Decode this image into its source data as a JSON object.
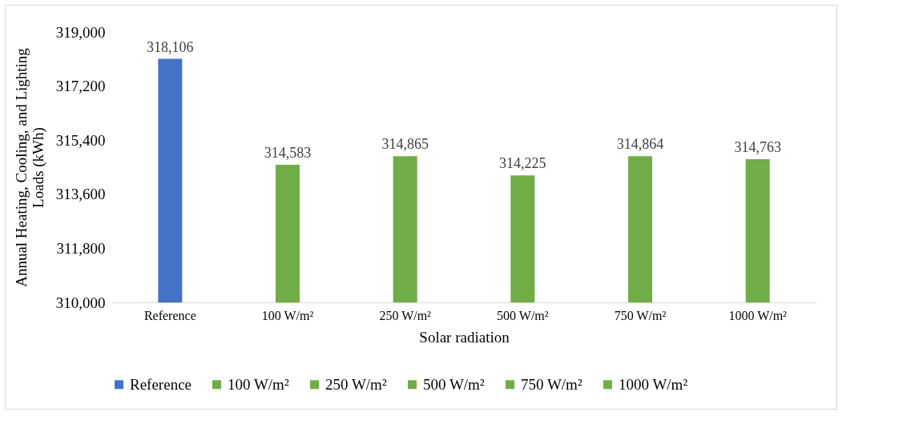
{
  "chart_data": {
    "type": "bar",
    "xlabel": "Solar radiation",
    "ylabel": "Annual Heating, Cooling, and Lighting Loads (kWh)",
    "categories": [
      "Reference",
      "100 W/m²",
      "250 W/m²",
      "500 W/m²",
      "750 W/m²",
      "1000 W/m²"
    ],
    "series": [
      {
        "name": "Reference",
        "color": "#4472c4",
        "values": [
          318106,
          null,
          null,
          null,
          null,
          null
        ],
        "value_labels": [
          "318,106",
          null,
          null,
          null,
          null,
          null
        ]
      },
      {
        "name": "100 W/m²",
        "color": "#70ad47",
        "values": [
          null,
          314583,
          null,
          null,
          null,
          null
        ],
        "value_labels": [
          null,
          "314,583",
          null,
          null,
          null,
          null
        ]
      },
      {
        "name": "250 W/m²",
        "color": "#70ad47",
        "values": [
          null,
          null,
          314865,
          null,
          null,
          null
        ],
        "value_labels": [
          null,
          null,
          "314,865",
          null,
          null,
          null
        ]
      },
      {
        "name": "500 W/m²",
        "color": "#70ad47",
        "values": [
          null,
          null,
          null,
          314225,
          null,
          null
        ],
        "value_labels": [
          null,
          null,
          null,
          "314,225",
          null,
          null
        ]
      },
      {
        "name": "750 W/m²",
        "color": "#70ad47",
        "values": [
          null,
          null,
          null,
          null,
          314864,
          null
        ],
        "value_labels": [
          null,
          null,
          null,
          null,
          "314,864",
          null
        ]
      },
      {
        "name": "1000 W/m²",
        "color": "#70ad47",
        "values": [
          null,
          null,
          null,
          null,
          null,
          314763
        ],
        "value_labels": [
          null,
          null,
          null,
          null,
          null,
          "314,763"
        ]
      }
    ],
    "ylim": [
      310000,
      319000
    ],
    "yticks": [
      {
        "value": 310000,
        "label": "310,000"
      },
      {
        "value": 311800,
        "label": "311,800"
      },
      {
        "value": 313600,
        "label": "313,600"
      },
      {
        "value": 315400,
        "label": "315,400"
      },
      {
        "value": 317200,
        "label": "317,200"
      },
      {
        "value": 319000,
        "label": "319,000"
      }
    ],
    "grid": false,
    "legend": "bottom"
  }
}
